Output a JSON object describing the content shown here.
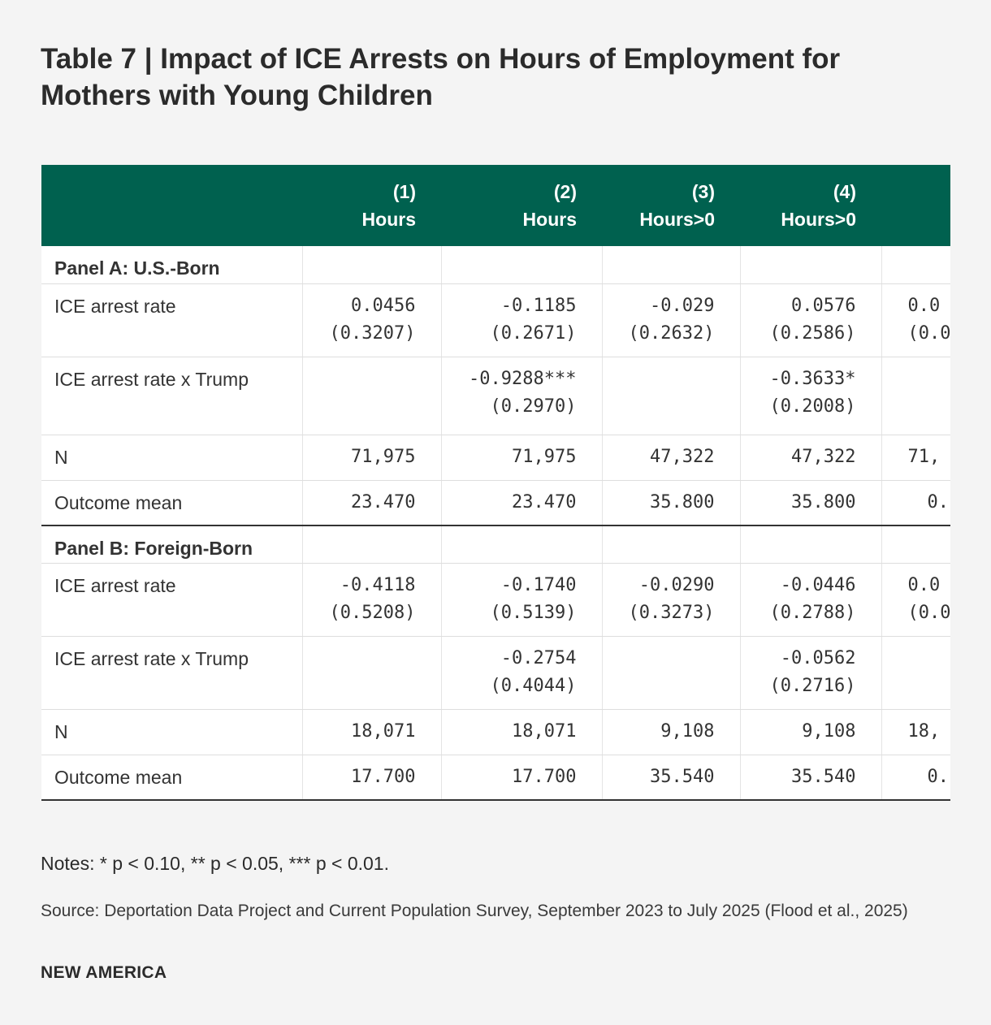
{
  "title": "Table 7 | Impact of ICE Arrests on Hours of Employment for Mothers with Young Children",
  "columns": [
    {
      "num": "(1)",
      "label": "Hours"
    },
    {
      "num": "(2)",
      "label": "Hours"
    },
    {
      "num": "(3)",
      "label": "Hours>0"
    },
    {
      "num": "(4)",
      "label": "Hours>0"
    },
    {
      "num": "",
      "label": ""
    }
  ],
  "panel_a": {
    "title": "Panel A: U.S.-Born",
    "arrest_rate": {
      "label": "ICE arrest rate",
      "coef": [
        "0.0456",
        "-0.1185",
        "-0.029",
        "0.0576",
        "0.0"
      ],
      "se": [
        "(0.3207)",
        "(0.2671)",
        "(0.2632)",
        "(0.2586)",
        "(0.0"
      ]
    },
    "arrest_trump": {
      "label": "ICE arrest rate x Trump",
      "coef": [
        "",
        "-0.9288***",
        "",
        "-0.3633*",
        ""
      ],
      "se": [
        "",
        "(0.2970)",
        "",
        "(0.2008)",
        ""
      ]
    },
    "n": {
      "label": "N",
      "values": [
        "71,975",
        "71,975",
        "47,322",
        "47,322",
        "71,"
      ]
    },
    "mean": {
      "label": "Outcome mean",
      "values": [
        "23.470",
        "23.470",
        "35.800",
        "35.800",
        "0."
      ]
    }
  },
  "panel_b": {
    "title": "Panel B: Foreign-Born",
    "arrest_rate": {
      "label": "ICE arrest rate",
      "coef": [
        "-0.4118",
        "-0.1740",
        "-0.0290",
        "-0.0446",
        "0.0"
      ],
      "se": [
        "(0.5208)",
        "(0.5139)",
        "(0.3273)",
        "(0.2788)",
        "(0.0"
      ]
    },
    "arrest_trump": {
      "label": "ICE arrest rate x Trump",
      "coef": [
        "",
        "-0.2754",
        "",
        "-0.0562",
        ""
      ],
      "se": [
        "",
        "(0.4044)",
        "",
        "(0.2716)",
        ""
      ]
    },
    "n": {
      "label": "N",
      "values": [
        "18,071",
        "18,071",
        "9,108",
        "9,108",
        "18,"
      ]
    },
    "mean": {
      "label": "Outcome mean",
      "values": [
        "17.700",
        "17.700",
        "35.540",
        "35.540",
        "0."
      ]
    }
  },
  "notes": "Notes: * p < 0.10, ** p < 0.05, *** p < 0.01.",
  "source": "Source: Deportation Data Project and Current Population Survey, September 2023 to July 2025 (Flood et al., 2025)",
  "brand": "NEW AMERICA",
  "colors": {
    "header_bg": "#00614f",
    "page_bg": "#f4f4f4"
  }
}
